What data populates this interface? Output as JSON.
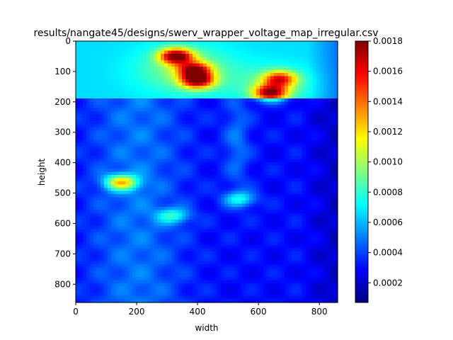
{
  "chart_data": {
    "type": "heatmap",
    "title": "results/nangate45/designs/swerv_wrapper_voltage_map_irregular.csv",
    "xlabel": "width",
    "ylabel": "height",
    "xlim": [
      0,
      860
    ],
    "ylim": [
      860,
      0
    ],
    "x_ticks": [
      0,
      200,
      400,
      600,
      800
    ],
    "y_ticks": [
      0,
      100,
      200,
      300,
      400,
      500,
      600,
      700,
      800
    ],
    "colorbar": {
      "colormap": "jet",
      "vmin": 7e-05,
      "vmax": 0.0018,
      "ticks": [
        "0.0002",
        "0.0004",
        "0.0006",
        "0.0008",
        "0.0010",
        "0.0012",
        "0.0014",
        "0.0016",
        "0.0018"
      ],
      "tick_values": [
        0.0002,
        0.0004,
        0.0006,
        0.0008,
        0.001,
        0.0012,
        0.0014,
        0.0016,
        0.0018
      ]
    },
    "grid": false,
    "hotspots": [
      {
        "x": 330,
        "y": 50,
        "value": 0.0018
      },
      {
        "x": 390,
        "y": 95,
        "value": 0.0016
      },
      {
        "x": 400,
        "y": 130,
        "value": 0.0017
      },
      {
        "x": 640,
        "y": 170,
        "value": 0.0017
      },
      {
        "x": 670,
        "y": 125,
        "value": 0.0015
      },
      {
        "x": 150,
        "y": 465,
        "value": 0.0015
      },
      {
        "x": 540,
        "y": 520,
        "value": 0.0011
      },
      {
        "x": 320,
        "y": 575,
        "value": 0.0011
      }
    ]
  }
}
